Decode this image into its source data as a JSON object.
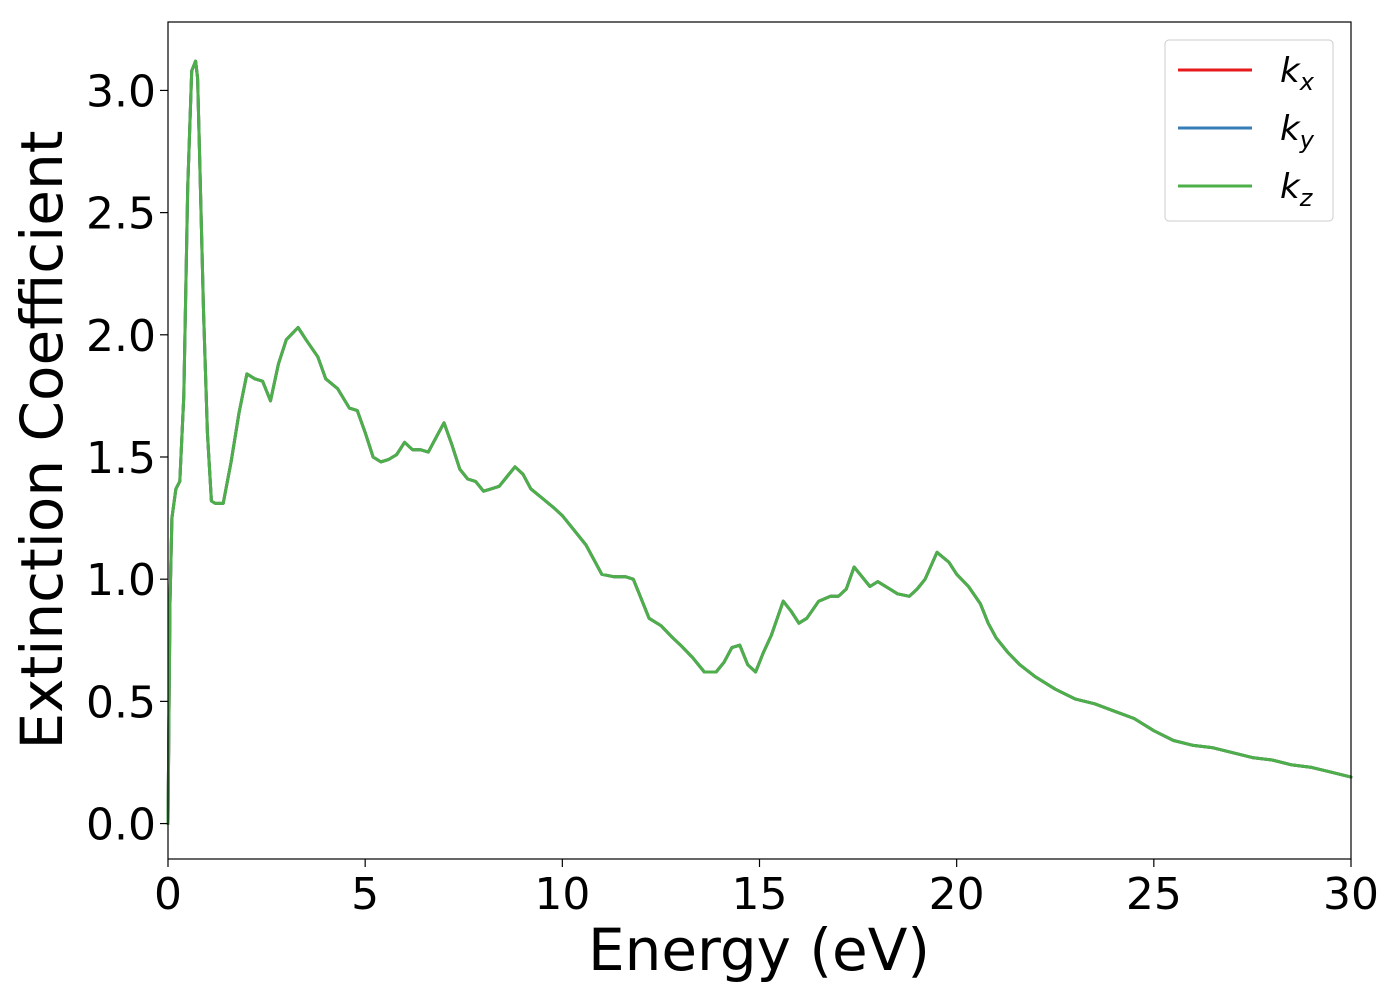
{
  "chart_data": {
    "type": "line",
    "title": "",
    "xlabel": "Energy (eV)",
    "ylabel": "Extinction Coefficient",
    "xlim": [
      0,
      30
    ],
    "ylim": [
      -0.145,
      3.28
    ],
    "xticks": [
      0,
      5,
      10,
      15,
      20,
      25,
      30
    ],
    "xtick_labels": [
      "0",
      "5",
      "10",
      "15",
      "20",
      "25",
      "30"
    ],
    "yticks": [
      0.0,
      0.5,
      1.0,
      1.5,
      2.0,
      2.5,
      3.0
    ],
    "ytick_labels": [
      "0.0",
      "0.5",
      "1.0",
      "1.5",
      "2.0",
      "2.5",
      "3.0"
    ],
    "grid": false,
    "legend_position": "top-right",
    "x": [
      0.0,
      0.05,
      0.1,
      0.2,
      0.3,
      0.4,
      0.5,
      0.6,
      0.7,
      0.75,
      0.8,
      0.9,
      1.0,
      1.1,
      1.2,
      1.3,
      1.4,
      1.6,
      1.8,
      2.0,
      2.2,
      2.4,
      2.6,
      2.8,
      3.0,
      3.3,
      3.5,
      3.8,
      4.0,
      4.3,
      4.6,
      4.8,
      5.0,
      5.2,
      5.4,
      5.6,
      5.8,
      6.0,
      6.2,
      6.4,
      6.6,
      6.8,
      7.0,
      7.2,
      7.4,
      7.6,
      7.8,
      8.0,
      8.2,
      8.4,
      8.6,
      8.8,
      9.0,
      9.2,
      9.5,
      9.8,
      10.0,
      10.3,
      10.6,
      10.8,
      11.0,
      11.3,
      11.6,
      11.8,
      12.0,
      12.2,
      12.5,
      12.8,
      13.0,
      13.3,
      13.6,
      13.9,
      14.1,
      14.3,
      14.5,
      14.7,
      14.9,
      15.1,
      15.3,
      15.6,
      15.8,
      16.0,
      16.2,
      16.5,
      16.8,
      17.0,
      17.2,
      17.4,
      17.6,
      17.8,
      18.0,
      18.2,
      18.5,
      18.8,
      19.0,
      19.2,
      19.5,
      19.8,
      20.0,
      20.3,
      20.6,
      20.8,
      21.0,
      21.3,
      21.6,
      22.0,
      22.5,
      23.0,
      23.5,
      24.0,
      24.5,
      25.0,
      25.5,
      26.0,
      26.5,
      27.0,
      27.5,
      28.0,
      28.5,
      29.0,
      29.5,
      30.0
    ],
    "series": [
      {
        "name": "k_x",
        "color": "#e41a1c"
      },
      {
        "name": "k_y",
        "color": "#377eb8"
      },
      {
        "name": "k_z",
        "color": "#4daf4a"
      }
    ],
    "y": [
      0.0,
      0.9,
      1.25,
      1.37,
      1.4,
      1.75,
      2.6,
      3.08,
      3.12,
      3.05,
      2.75,
      2.1,
      1.6,
      1.32,
      1.31,
      1.31,
      1.31,
      1.48,
      1.68,
      1.84,
      1.82,
      1.81,
      1.73,
      1.88,
      1.98,
      2.03,
      1.98,
      1.91,
      1.82,
      1.78,
      1.7,
      1.69,
      1.6,
      1.5,
      1.48,
      1.49,
      1.51,
      1.56,
      1.53,
      1.53,
      1.52,
      1.58,
      1.64,
      1.55,
      1.45,
      1.41,
      1.4,
      1.36,
      1.37,
      1.38,
      1.42,
      1.46,
      1.43,
      1.37,
      1.33,
      1.29,
      1.26,
      1.2,
      1.14,
      1.08,
      1.02,
      1.01,
      1.01,
      1.0,
      0.92,
      0.84,
      0.81,
      0.76,
      0.73,
      0.68,
      0.62,
      0.62,
      0.66,
      0.72,
      0.73,
      0.65,
      0.62,
      0.7,
      0.77,
      0.91,
      0.87,
      0.82,
      0.84,
      0.91,
      0.93,
      0.93,
      0.96,
      1.05,
      1.01,
      0.97,
      0.99,
      0.97,
      0.94,
      0.93,
      0.96,
      1.0,
      1.11,
      1.07,
      1.02,
      0.97,
      0.9,
      0.82,
      0.76,
      0.7,
      0.65,
      0.6,
      0.55,
      0.51,
      0.49,
      0.46,
      0.43,
      0.38,
      0.34,
      0.32,
      0.31,
      0.29,
      0.27,
      0.26,
      0.24,
      0.23,
      0.21,
      0.19
    ]
  }
}
